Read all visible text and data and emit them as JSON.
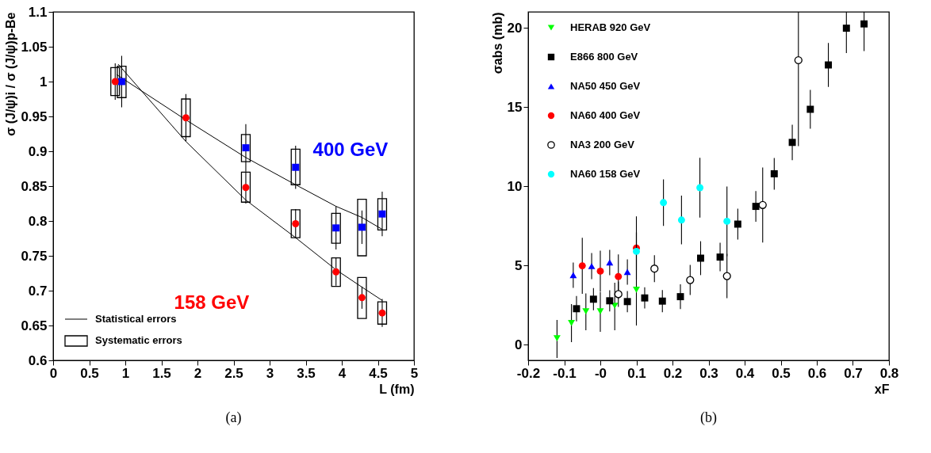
{
  "chart_data": [
    {
      "type": "scatter",
      "xlabel": "L (fm)",
      "ylabel": "σ (J/ψ)i / σ (J/ψ)p-Be",
      "xlim": [
        0,
        5
      ],
      "ylim": [
        0.6,
        1.1
      ],
      "xticks": [
        0,
        0.5,
        1,
        1.5,
        2,
        2.5,
        3,
        3.5,
        4,
        4.5,
        5
      ],
      "yticks": [
        0.6,
        0.65,
        0.7,
        0.75,
        0.8,
        0.85,
        0.9,
        0.95,
        1,
        1.05,
        1.1
      ],
      "legend": "bottom left",
      "annotations": [
        "(a)",
        "Statistical errors"
      ],
      "series": [
        {
          "name": "Systematic errors",
          "type": "bar",
          "color": "#000000",
          "x": [
            0.86,
            1.84,
            2.67,
            3.36,
            3.92,
            4.28,
            4.56
          ],
          "base": [
            0.98,
            0.921,
            0.827,
            0.776,
            0.706,
            0.66,
            0.652
          ],
          "values": [
            0.04,
            0.054,
            0.043,
            0.04,
            0.041,
            0.059,
            0.032
          ]
        },
        {
          "type": "bar",
          "color": "#000000",
          "x": [
            0.95,
            2.67,
            3.36,
            3.92,
            4.28,
            4.56
          ],
          "base": [
            0.977,
            0.885,
            0.852,
            0.768,
            0.75,
            0.787
          ],
          "values": [
            0.045,
            0.039,
            0.051,
            0.043,
            0.081,
            0.045
          ]
        },
        {
          "type": "line",
          "color": "#000000",
          "x": [
            0.88,
            1.84,
            2.67,
            3.36,
            3.92,
            4.28,
            4.56
          ],
          "values": [
            1.01,
            0.945,
            0.891,
            0.852,
            0.821,
            0.805,
            0.788
          ]
        },
        {
          "type": "line",
          "color": "#000000",
          "x": [
            0.9,
            1.84,
            2.67,
            3.36,
            3.92,
            4.28,
            4.56
          ],
          "values": [
            1.025,
            0.914,
            0.83,
            0.776,
            0.73,
            0.705,
            0.686
          ]
        },
        {
          "name": "400 GeV",
          "color": "#0000ff",
          "marker": "square",
          "x": [
            0.95,
            2.67,
            3.36,
            3.92,
            4.28,
            4.56
          ],
          "values": [
            1,
            0.905,
            0.877,
            0.79,
            0.791,
            0.81
          ],
          "errors": [
            0.037,
            0.034,
            0.031,
            0.031,
            0.024,
            0.032
          ]
        },
        {
          "name": "158 GeV",
          "color": "#ff0000",
          "marker": "circle",
          "x": [
            0.86,
            1.84,
            2.67,
            3.36,
            3.92,
            4.28,
            4.56
          ],
          "values": [
            1,
            0.948,
            0.848,
            0.796,
            0.727,
            0.69,
            0.668
          ],
          "errors": [
            0.026,
            0.034,
            0.023,
            0.021,
            0.02,
            0.016,
            0.02
          ]
        }
      ]
    },
    {
      "type": "scatter",
      "xlabel": "xF",
      "ylabel": "σabs (mb)",
      "xlim": [
        -0.2,
        0.8
      ],
      "ylim": [
        -1,
        21
      ],
      "xticks": [
        -0.2,
        -0.1,
        {
          "value": 0,
          "label": "-0"
        },
        0.1,
        0.2,
        0.3,
        0.4,
        0.5,
        0.6,
        0.7,
        0.8
      ],
      "yticks": [
        0,
        5,
        10,
        15,
        20
      ],
      "legend": "top left",
      "annotations": [
        "(b)"
      ],
      "series": [
        {
          "name": "HERAB 920 GeV",
          "color": "#00ff00",
          "marker": "triangle-down",
          "x": [
            -0.12,
            -0.08,
            -0.04,
            0.0,
            0.04,
            0.1
          ],
          "values": [
            0.39,
            1.36,
            2.09,
            2.09,
            2.45,
            3.46
          ],
          "errors": [
            [
              -0.85,
              1.55
            ],
            [
              0.15,
              2.55
            ],
            [
              0.9,
              3.23
            ],
            [
              0.8,
              3.3
            ],
            [
              0.9,
              3.9
            ],
            [
              1.2,
              7.1
            ]
          ]
        },
        {
          "name": "E866 800 GeV",
          "color": "#000000",
          "marker": "square",
          "x": [
            -0.066,
            -0.019,
            0.026,
            0.075,
            0.123,
            0.172,
            0.222,
            0.278,
            0.332,
            0.381,
            0.431,
            0.482,
            0.532,
            0.582,
            0.632,
            0.682,
            0.731
          ],
          "values": [
            2.26,
            2.86,
            2.76,
            2.71,
            2.94,
            2.74,
            3.02,
            5.45,
            5.52,
            7.6,
            8.72,
            10.78,
            12.76,
            14.85,
            17.65,
            19.97,
            20.24
          ],
          "errors": [
            0.8,
            0.7,
            0.67,
            0.67,
            0.67,
            0.7,
            0.78,
            1.07,
            0.9,
            0.97,
            0.97,
            1.0,
            1.12,
            1.22,
            1.39,
            [
              18.4,
              21
            ],
            [
              18.52,
              21
            ]
          ]
        },
        {
          "name": "NA50 450 GeV",
          "color": "#0000ff",
          "marker": "triangle",
          "x": [
            -0.075,
            -0.024,
            0.026,
            0.075
          ],
          "values": [
            4.38,
            4.95,
            5.18,
            4.58
          ],
          "errors": [
            0.8,
            0.83,
            0.8,
            0.8
          ]
        },
        {
          "name": "NA60 400 GeV",
          "color": "#ff0000",
          "marker": "circle",
          "x": [
            -0.05,
            0.0,
            0.05,
            0.1
          ],
          "values": [
            4.97,
            4.63,
            4.29,
            6.09
          ],
          "errors": [
            1.77,
            1.3,
            1.4,
            2.0
          ]
        },
        {
          "name": "NA3 200 GeV",
          "color": "#ffffff",
          "marker": "circle",
          "x": [
            0.05,
            0.15,
            0.249,
            0.351,
            0.45,
            0.549
          ],
          "values": [
            3.18,
            4.79,
            4.07,
            4.32,
            8.81,
            17.95
          ],
          "errors": [
            0.8,
            0.85,
            0.95,
            1.4,
            2.37,
            [
              12.53,
              21
            ]
          ]
        },
        {
          "name": "NA60 158 GeV",
          "color": "#00ffff",
          "marker": "circle",
          "x": [
            0.1,
            0.175,
            0.225,
            0.276,
            0.351
          ],
          "values": [
            5.88,
            8.96,
            7.86,
            9.9,
            7.78
          ],
          "errors": [
            1.2,
            1.47,
            1.54,
            1.89,
            2.2
          ]
        }
      ]
    }
  ]
}
